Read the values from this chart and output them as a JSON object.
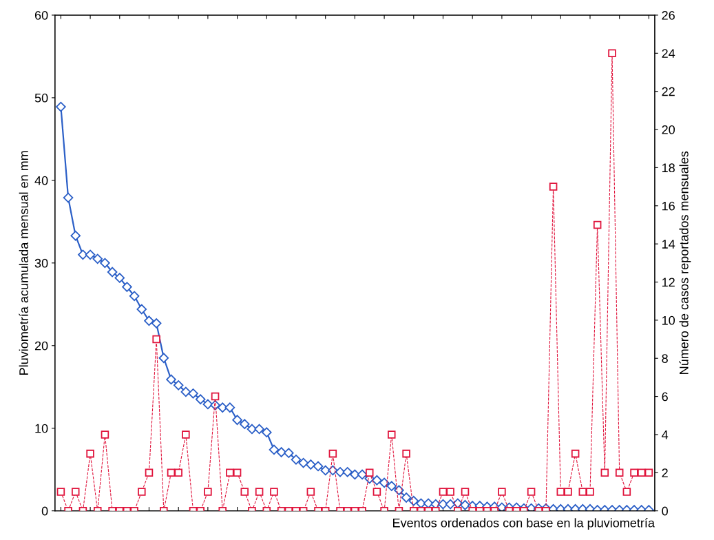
{
  "chart_data": {
    "type": "line",
    "xlabel": "Eventos ordenados con base en la pluviometría",
    "ylabel": "Pluviometría acumulada mensual en mm",
    "y2label": "Número de casos reportados mensuales",
    "categories": [
      null,
      null,
      null,
      null,
      null,
      null,
      null,
      null,
      null,
      null,
      null,
      null,
      null,
      null,
      null,
      null,
      null,
      null,
      null,
      null,
      null,
      null,
      null,
      null,
      null,
      null,
      null,
      null,
      null,
      null,
      null,
      null,
      null,
      null,
      null,
      null,
      null,
      null,
      null,
      null,
      null,
      null,
      null,
      null,
      null,
      null,
      null,
      null,
      null,
      null,
      null,
      null,
      null,
      null,
      null,
      null,
      null,
      null,
      null,
      null,
      null,
      null,
      null,
      null,
      null,
      null,
      null,
      null,
      null,
      null,
      null,
      null,
      null,
      null,
      null,
      null,
      null,
      null,
      null,
      null,
      null
    ],
    "series": [
      {
        "color": "#2b5fc7",
        "marker": "diamond",
        "line_style": "solid",
        "values": [
          48.9,
          37.9,
          33.3,
          31.0,
          31.0,
          30.5,
          30.0,
          28.9,
          28.2,
          27.1,
          26.0,
          24.4,
          23.0,
          22.7,
          18.5,
          15.9,
          15.2,
          14.4,
          14.2,
          13.5,
          12.9,
          12.8,
          12.5,
          12.5,
          11.0,
          10.5,
          9.9,
          9.9,
          9.5,
          7.4,
          7.1,
          7.0,
          6.2,
          5.8,
          5.6,
          5.4,
          4.9,
          4.9,
          4.7,
          4.7,
          4.4,
          4.4,
          3.9,
          3.7,
          3.4,
          3.0,
          2.5,
          1.6,
          1.2,
          0.9,
          0.9,
          0.8,
          0.8,
          0.8,
          0.9,
          0.7,
          0.6,
          0.6,
          0.5,
          0.5,
          0.4,
          0.4,
          0.4,
          0.3,
          0.3,
          0.3,
          0.3,
          0.2,
          0.2,
          0.2,
          0.2,
          0.2,
          0.2,
          0.1,
          0.1,
          0.1,
          0.1,
          0.1,
          0.1,
          0.1,
          0.1
        ]
      },
      {
        "color": "#e0143c",
        "marker": "square",
        "line_style": "dashed",
        "axis": "y2",
        "values": [
          1,
          0,
          1,
          0,
          3,
          0,
          4,
          0,
          0,
          0,
          0,
          1,
          2,
          9,
          0,
          2,
          2,
          4,
          0,
          0,
          1,
          6,
          0,
          2,
          2,
          1,
          0,
          1,
          0,
          1,
          0,
          0,
          0,
          0,
          1,
          0,
          0,
          3,
          0,
          0,
          0,
          0,
          2,
          1,
          0,
          4,
          0,
          3,
          0,
          0,
          0,
          0,
          1,
          1,
          0,
          1,
          0,
          0,
          0,
          0,
          1,
          0,
          0,
          0,
          1,
          0,
          0,
          17,
          1,
          1,
          3,
          1,
          1,
          15,
          2,
          24,
          2,
          1,
          2,
          2,
          2
        ]
      }
    ],
    "ylim": [
      0,
      60
    ],
    "yticks": [
      0,
      10,
      20,
      30,
      40,
      50,
      60
    ],
    "y2lim": [
      0,
      26
    ],
    "y2ticks": [
      0,
      2,
      4,
      6,
      8,
      10,
      12,
      14,
      16,
      18,
      20,
      22,
      24,
      26
    ],
    "grid": false,
    "legend": false
  }
}
